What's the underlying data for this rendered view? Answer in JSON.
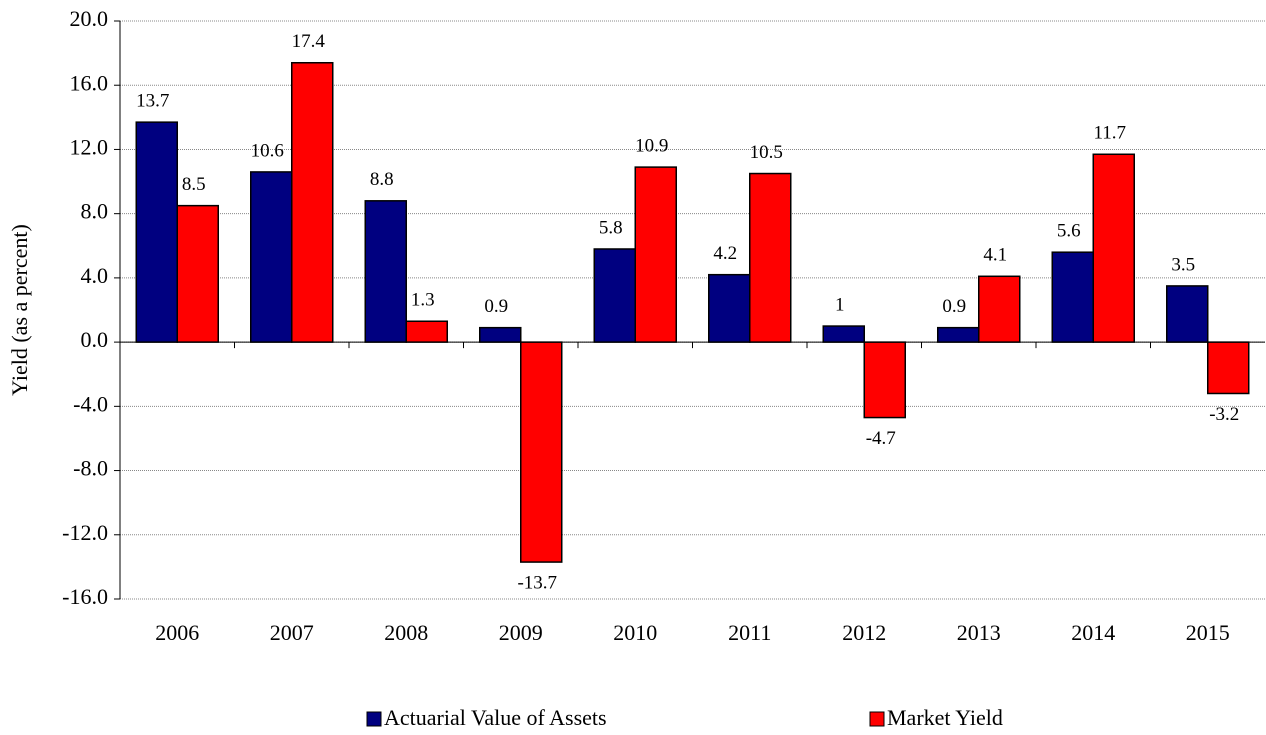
{
  "chart_data": {
    "type": "bar",
    "y_label": "Yield (as a percent)",
    "categories": [
      "2006",
      "2007",
      "2008",
      "2009",
      "2010",
      "2011",
      "2012",
      "2013",
      "2014",
      "2015"
    ],
    "series": [
      {
        "name": "Actuarial Value of Assets",
        "color": "#000080",
        "values": [
          13.7,
          10.6,
          8.8,
          0.9,
          5.8,
          4.2,
          1,
          0.9,
          5.6,
          3.5
        ]
      },
      {
        "name": "Market Yield",
        "color": "#ff0000",
        "values": [
          8.5,
          17.4,
          1.3,
          -13.7,
          10.9,
          10.5,
          -4.7,
          4.1,
          11.7,
          -3.2
        ]
      }
    ],
    "ylim": [
      -16,
      20
    ],
    "yticks": [
      {
        "value": -16,
        "label": "-16.0"
      },
      {
        "value": -12,
        "label": "-12.0"
      },
      {
        "value": -8,
        "label": "-8.0"
      },
      {
        "value": -4,
        "label": "-4.0"
      },
      {
        "value": 0,
        "label": "0.0"
      },
      {
        "value": 4,
        "label": "4.0"
      },
      {
        "value": 8,
        "label": "8.0"
      },
      {
        "value": 12,
        "label": "12.0"
      },
      {
        "value": 16,
        "label": "16.0"
      },
      {
        "value": 20,
        "label": "20.0"
      }
    ],
    "grid": true,
    "legend": "bottom"
  }
}
